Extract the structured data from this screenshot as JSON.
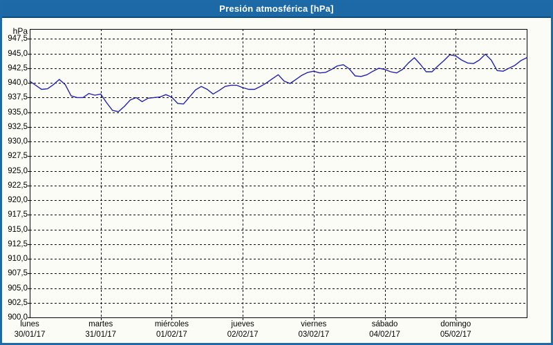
{
  "window": {
    "title": "Presión atmosférica [hPa]",
    "title_bar_color": "#1c69a6",
    "border_color": "#1d6aa8",
    "background_color": "#fcfcf7"
  },
  "chart_data": {
    "type": "line",
    "title": "Presión atmosférica [hPa]",
    "xlabel": "",
    "ylabel": "hPa",
    "unit": "hPa",
    "ylim": [
      900,
      949.2
    ],
    "grid": "dashed",
    "legend": "none",
    "y_ticks": [
      947.5,
      945.0,
      942.5,
      940.0,
      937.5,
      935.0,
      932.5,
      930.0,
      927.5,
      925.0,
      922.5,
      920.0,
      917.5,
      915.0,
      912.5,
      910.0,
      907.5,
      905.0,
      902.5,
      900.0
    ],
    "y_tick_labels": [
      "947,5",
      "945,0",
      "942,5",
      "940,0",
      "937,5",
      "935,0",
      "932,5",
      "930,0",
      "927,5",
      "925,0",
      "922,5",
      "920,0",
      "917,5",
      "915,0",
      "912,5",
      "910,0",
      "907,5",
      "905,0",
      "902,5",
      "900,0"
    ],
    "x_days": [
      {
        "name": "lunes",
        "date": "30/01/17"
      },
      {
        "name": "martes",
        "date": "31/01/17"
      },
      {
        "name": "miércoles",
        "date": "01/02/17"
      },
      {
        "name": "jueves",
        "date": "02/02/17"
      },
      {
        "name": "viernes",
        "date": "03/02/17"
      },
      {
        "name": "sábado",
        "date": "04/02/17"
      },
      {
        "name": "domingo",
        "date": "05/02/17"
      }
    ],
    "hours_per_day": 24,
    "series": [
      {
        "name": "Presión atmosférica",
        "color": "#2020b0",
        "x_hours": [
          0,
          2,
          4,
          6,
          8,
          10,
          12,
          14,
          16,
          18,
          20,
          22,
          24,
          26,
          28,
          30,
          32,
          34,
          36,
          38,
          40,
          42,
          44,
          46,
          48,
          50,
          52,
          54,
          56,
          58,
          60,
          62,
          64,
          66,
          68,
          70,
          72,
          74,
          76,
          78,
          80,
          82,
          84,
          86,
          88,
          90,
          92,
          94,
          96,
          98,
          100,
          102,
          104,
          106,
          108,
          110,
          112,
          114,
          116,
          118,
          120,
          122,
          124,
          126,
          128,
          130,
          132,
          134,
          136,
          138,
          140,
          142,
          144,
          146,
          148,
          150,
          152,
          154,
          156,
          158,
          160,
          162,
          164,
          166,
          168
        ],
        "values": [
          940.3,
          939.6,
          938.9,
          939.0,
          939.7,
          940.6,
          939.7,
          937.8,
          937.5,
          937.5,
          938.2,
          937.9,
          938.1,
          936.6,
          935.3,
          935.1,
          936.0,
          937.1,
          937.5,
          936.8,
          937.4,
          937.5,
          937.6,
          938.0,
          937.6,
          936.5,
          936.4,
          937.6,
          938.8,
          939.4,
          938.9,
          938.1,
          938.7,
          939.4,
          939.6,
          939.6,
          939.2,
          938.9,
          938.9,
          939.4,
          940.0,
          940.7,
          941.4,
          940.3,
          939.9,
          940.6,
          941.3,
          941.8,
          942.0,
          941.7,
          941.8,
          942.3,
          942.9,
          943.1,
          942.4,
          941.2,
          941.1,
          941.4,
          942.0,
          942.5,
          942.3,
          941.9,
          941.7,
          942.3,
          943.4,
          944.3,
          943.2,
          941.9,
          941.9,
          942.9,
          943.8,
          944.8,
          944.6,
          943.9,
          943.4,
          943.3,
          943.9,
          944.9,
          943.9,
          942.1,
          942.0,
          942.5,
          943.0,
          943.8,
          944.3
        ]
      }
    ]
  }
}
